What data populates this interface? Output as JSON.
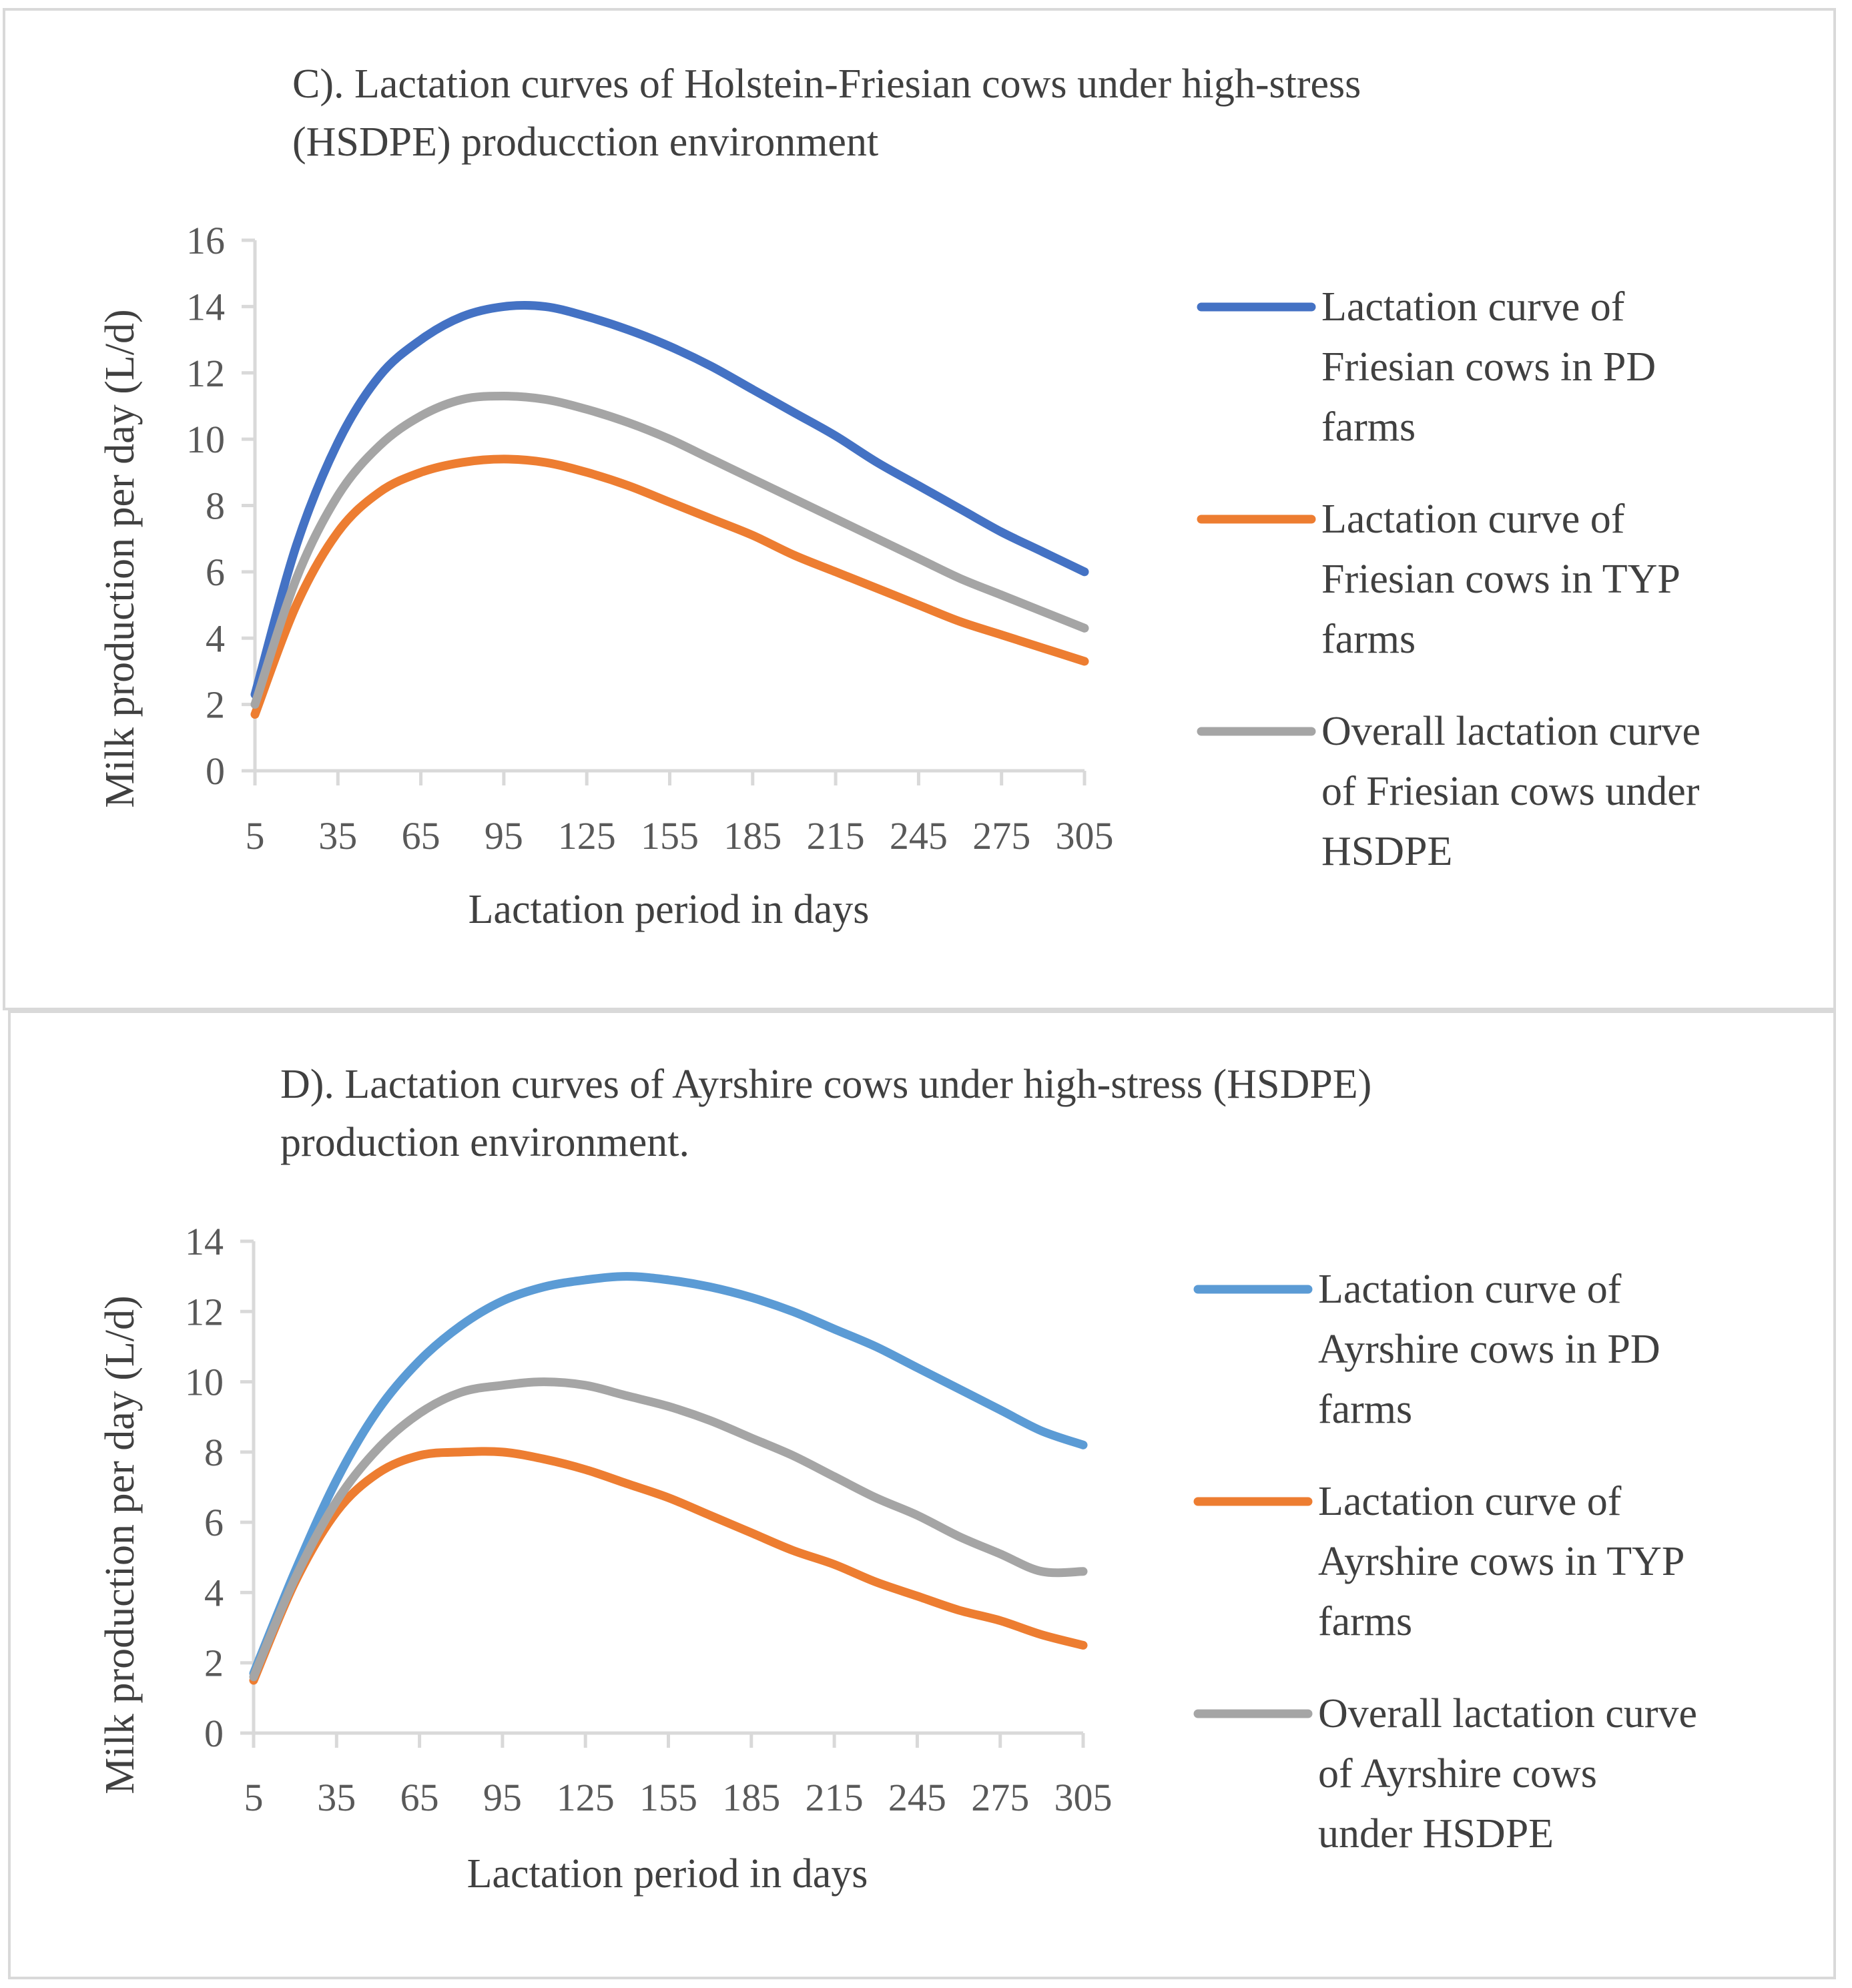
{
  "chart_data": [
    {
      "type": "line",
      "title_lines": [
        "C). Lactation curves of Holstein-Friesian cows under high-stress",
        "(HSDPE) producction environment"
      ],
      "xlabel": "Lactation period in days",
      "ylabel": "Milk production per day (L/d)",
      "ylim": [
        0,
        16
      ],
      "yticks": [
        0,
        2,
        4,
        6,
        8,
        10,
        12,
        14,
        16
      ],
      "xlim": [
        5,
        305
      ],
      "xticks": [
        5,
        35,
        65,
        95,
        125,
        155,
        185,
        215,
        245,
        275,
        305
      ],
      "grid": false,
      "legend_position": "right",
      "series": [
        {
          "name_lines": [
            "Lactation curve of",
            "Friesian cows in PD",
            "farms"
          ],
          "color": "#4472C4",
          "x": [
            5,
            20,
            35,
            50,
            65,
            80,
            95,
            110,
            125,
            140,
            155,
            170,
            185,
            200,
            215,
            230,
            245,
            260,
            275,
            290,
            305
          ],
          "y": [
            2.3,
            6.8,
            9.9,
            11.9,
            13.0,
            13.7,
            14.0,
            14.0,
            13.7,
            13.3,
            12.8,
            12.2,
            11.5,
            10.8,
            10.1,
            9.3,
            8.6,
            7.9,
            7.2,
            6.6,
            6.0
          ]
        },
        {
          "name_lines": [
            "Lactation curve of",
            "Friesian cows in TYP",
            "farms"
          ],
          "color": "#ED7D31",
          "x": [
            5,
            20,
            35,
            50,
            65,
            80,
            95,
            110,
            125,
            140,
            155,
            170,
            185,
            200,
            215,
            230,
            245,
            260,
            275,
            290,
            305
          ],
          "y": [
            1.7,
            5.0,
            7.2,
            8.4,
            9.0,
            9.3,
            9.4,
            9.3,
            9.0,
            8.6,
            8.1,
            7.6,
            7.1,
            6.5,
            6.0,
            5.5,
            5.0,
            4.5,
            4.1,
            3.7,
            3.3
          ]
        },
        {
          "name_lines": [
            "Overall lactation curve",
            "of Friesian cows under",
            "HSDPE"
          ],
          "color": "#A5A5A5",
          "x": [
            5,
            20,
            35,
            50,
            65,
            80,
            95,
            110,
            125,
            140,
            155,
            170,
            185,
            200,
            215,
            230,
            245,
            260,
            275,
            290,
            305
          ],
          "y": [
            2.0,
            5.8,
            8.3,
            9.8,
            10.7,
            11.2,
            11.3,
            11.2,
            10.9,
            10.5,
            10.0,
            9.4,
            8.8,
            8.2,
            7.6,
            7.0,
            6.4,
            5.8,
            5.3,
            4.8,
            4.3
          ]
        }
      ]
    },
    {
      "type": "line",
      "title_lines": [
        "D). Lactation curves of Ayrshire cows under high-stress (HSDPE)",
        "production environment."
      ],
      "xlabel": "Lactation period in days",
      "ylabel": "Milk production per day (L/d)",
      "ylim": [
        0,
        14
      ],
      "yticks": [
        0,
        2,
        4,
        6,
        8,
        10,
        12,
        14
      ],
      "xlim": [
        5,
        305
      ],
      "xticks": [
        5,
        35,
        65,
        95,
        125,
        155,
        185,
        215,
        245,
        275,
        305
      ],
      "grid": false,
      "legend_position": "right",
      "series": [
        {
          "name_lines": [
            "Lactation curve of",
            "Ayrshire cows in PD",
            "farms"
          ],
          "color": "#5B9BD5",
          "x": [
            5,
            20,
            35,
            50,
            65,
            80,
            95,
            110,
            125,
            140,
            155,
            170,
            185,
            200,
            215,
            230,
            245,
            260,
            275,
            290,
            305
          ],
          "y": [
            1.7,
            4.6,
            7.2,
            9.2,
            10.6,
            11.6,
            12.3,
            12.7,
            12.9,
            13.0,
            12.9,
            12.7,
            12.4,
            12.0,
            11.5,
            11.0,
            10.4,
            9.8,
            9.2,
            8.6,
            8.2
          ]
        },
        {
          "name_lines": [
            "Lactation curve of",
            "Ayrshire cows in TYP",
            "farms"
          ],
          "color": "#ED7D31",
          "x": [
            5,
            20,
            35,
            50,
            65,
            80,
            95,
            110,
            125,
            140,
            155,
            170,
            185,
            200,
            215,
            230,
            245,
            260,
            275,
            290,
            305
          ],
          "y": [
            1.5,
            4.3,
            6.3,
            7.4,
            7.9,
            8.0,
            8.0,
            7.8,
            7.5,
            7.1,
            6.7,
            6.2,
            5.7,
            5.2,
            4.8,
            4.3,
            3.9,
            3.5,
            3.2,
            2.8,
            2.5
          ]
        },
        {
          "name_lines": [
            "Overall lactation curve",
            "of Ayrshire cows",
            "under HSDPE"
          ],
          "color": "#A5A5A5",
          "x": [
            5,
            20,
            35,
            50,
            65,
            80,
            95,
            110,
            125,
            140,
            155,
            170,
            185,
            200,
            215,
            230,
            245,
            260,
            275,
            290,
            305
          ],
          "y": [
            1.6,
            4.4,
            6.6,
            8.1,
            9.1,
            9.7,
            9.9,
            10.0,
            9.9,
            9.6,
            9.3,
            8.9,
            8.4,
            7.9,
            7.3,
            6.7,
            6.2,
            5.6,
            5.1,
            4.6,
            4.6
          ]
        }
      ]
    }
  ]
}
